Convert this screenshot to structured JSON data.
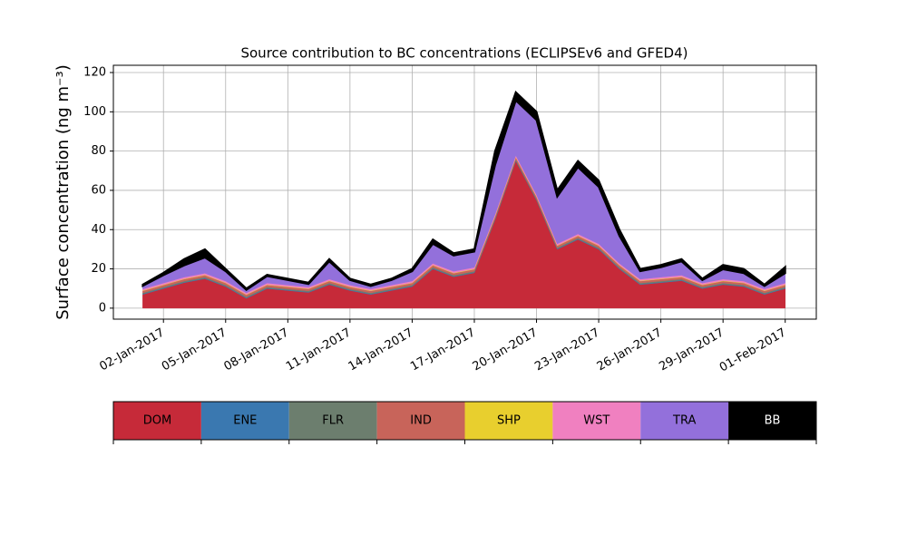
{
  "chart_data": {
    "type": "stackedarea",
    "title": "Source contribution to BC concentrations (ECLIPSEv6 and GFED4)",
    "ylabel": "Surface concentration (ng m⁻³)",
    "x": [
      "2017-01-01",
      "2017-01-02",
      "2017-01-03",
      "2017-01-04",
      "2017-01-05",
      "2017-01-06",
      "2017-01-07",
      "2017-01-08",
      "2017-01-09",
      "2017-01-10",
      "2017-01-11",
      "2017-01-12",
      "2017-01-13",
      "2017-01-14",
      "2017-01-15",
      "2017-01-16",
      "2017-01-17",
      "2017-01-18",
      "2017-01-19",
      "2017-01-20",
      "2017-01-21",
      "2017-01-22",
      "2017-01-23",
      "2017-01-24",
      "2017-01-25",
      "2017-01-26",
      "2017-01-27",
      "2017-01-28",
      "2017-01-29",
      "2017-01-30",
      "2017-01-31",
      "2017-02-01"
    ],
    "series": [
      {
        "name": "DOM",
        "color": "#c62a39",
        "values": [
          7,
          10,
          13,
          15,
          11,
          5,
          10,
          9,
          8,
          12,
          9,
          7,
          9,
          11,
          20,
          16,
          18,
          45,
          75,
          55,
          30,
          35,
          30,
          20,
          12,
          13,
          14,
          10,
          12,
          11,
          7,
          10
        ]
      },
      {
        "name": "ENE",
        "color": "#3a78b0",
        "values": [
          0.3,
          0.3,
          0.3,
          0.3,
          0.3,
          0.3,
          0.3,
          0.3,
          0.3,
          0.3,
          0.3,
          0.3,
          0.3,
          0.3,
          0.3,
          0.3,
          0.3,
          0.3,
          0.3,
          0.3,
          0.3,
          0.3,
          0.3,
          0.3,
          0.3,
          0.3,
          0.3,
          0.3,
          0.3,
          0.3,
          0.3,
          0.3
        ]
      },
      {
        "name": "FLR",
        "color": "#6c7e6e",
        "values": [
          0.5,
          0.5,
          0.5,
          0.5,
          0.5,
          0.5,
          0.5,
          0.5,
          0.5,
          0.5,
          0.5,
          0.5,
          0.5,
          0.5,
          0.5,
          0.5,
          0.5,
          0.5,
          0.5,
          0.5,
          0.5,
          0.5,
          0.5,
          0.5,
          0.5,
          0.5,
          0.5,
          0.5,
          0.5,
          0.5,
          0.5,
          0.5
        ]
      },
      {
        "name": "IND",
        "color": "#c8645a",
        "values": [
          1,
          1,
          1,
          1,
          1,
          1,
          1,
          1,
          1,
          1,
          1,
          1,
          1,
          1,
          1,
          1,
          1,
          1,
          1,
          1,
          1,
          1,
          1,
          1,
          1,
          1,
          1,
          1,
          1,
          1,
          1,
          1
        ]
      },
      {
        "name": "SHP",
        "color": "#e8cf2e",
        "values": [
          0.2,
          0.2,
          0.2,
          0.2,
          0.2,
          0.2,
          0.2,
          0.2,
          0.2,
          0.2,
          0.2,
          0.2,
          0.2,
          0.2,
          0.2,
          0.2,
          0.2,
          0.2,
          0.2,
          0.2,
          0.2,
          0.2,
          0.2,
          0.2,
          0.2,
          0.2,
          0.2,
          0.2,
          0.2,
          0.2,
          0.2,
          0.2
        ]
      },
      {
        "name": "WST",
        "color": "#f080c0",
        "values": [
          0.8,
          0.8,
          0.8,
          0.8,
          0.8,
          0.8,
          0.8,
          0.8,
          0.8,
          0.8,
          0.8,
          0.8,
          0.8,
          0.8,
          0.8,
          0.8,
          0.8,
          0.8,
          0.8,
          0.8,
          0.8,
          0.8,
          0.8,
          0.8,
          0.8,
          0.8,
          0.8,
          0.8,
          0.8,
          0.8,
          0.8,
          0.8
        ]
      },
      {
        "name": "TRA",
        "color": "#9370db",
        "values": [
          1.5,
          4,
          6,
          8,
          5,
          1.5,
          3.5,
          2.5,
          1.5,
          9,
          2.5,
          1.5,
          2.5,
          5,
          10,
          8,
          8,
          25,
          28,
          38,
          24,
          34,
          29,
          14,
          4,
          5,
          7,
          1.5,
          5,
          4,
          1.5,
          5
        ]
      },
      {
        "name": "BB",
        "color": "#000000",
        "values": [
          0.7,
          1.2,
          3.2,
          4.2,
          1.2,
          0.7,
          0.7,
          0.7,
          0.7,
          1.2,
          0.7,
          0.7,
          0.7,
          1.2,
          2.2,
          1.2,
          1.2,
          7.2,
          4.2,
          4.2,
          3.2,
          3.2,
          3.2,
          3.2,
          1.2,
          1.2,
          1.2,
          0.7,
          2.2,
          2.2,
          0.7,
          3.2
        ]
      }
    ],
    "xlim": [
      "2016-12-30T14:00:00Z",
      "2017-02-02T12:00:00Z"
    ],
    "xticks": [
      {
        "value": "2017-01-02",
        "label": "02-Jan-2017"
      },
      {
        "value": "2017-01-05",
        "label": "05-Jan-2017"
      },
      {
        "value": "2017-01-08",
        "label": "08-Jan-2017"
      },
      {
        "value": "2017-01-11",
        "label": "11-Jan-2017"
      },
      {
        "value": "2017-01-14",
        "label": "14-Jan-2017"
      },
      {
        "value": "2017-01-17",
        "label": "17-Jan-2017"
      },
      {
        "value": "2017-01-20",
        "label": "20-Jan-2017"
      },
      {
        "value": "2017-01-23",
        "label": "23-Jan-2017"
      },
      {
        "value": "2017-01-26",
        "label": "26-Jan-2017"
      },
      {
        "value": "2017-01-29",
        "label": "29-Jan-2017"
      },
      {
        "value": "2017-02-01",
        "label": "01-Feb-2017"
      }
    ],
    "ylim": [
      -5.6,
      123.7
    ],
    "yticks": [
      0,
      20,
      40,
      60,
      80,
      100,
      120
    ],
    "grid": true
  }
}
